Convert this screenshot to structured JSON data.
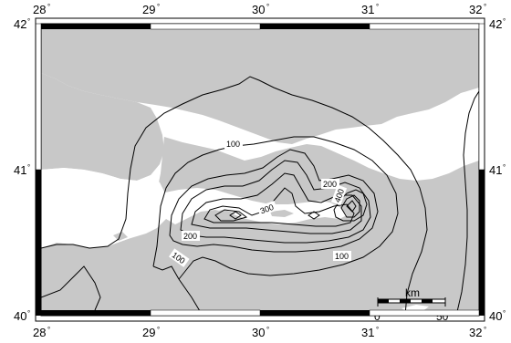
{
  "map": {
    "longitudes": [
      "28",
      "29",
      "30",
      "31",
      "32"
    ],
    "latitudes": [
      "42",
      "41",
      "40"
    ],
    "degree_symbol": "°",
    "land_color": "#c8c8c8",
    "sea_color": "#ffffff",
    "contour_color": "#000000",
    "contour_labels": [
      {
        "text": "100"
      },
      {
        "text": "100"
      },
      {
        "text": "100"
      },
      {
        "text": "200"
      },
      {
        "text": "200"
      },
      {
        "text": "300"
      },
      {
        "text": "400"
      }
    ],
    "scale_bar": {
      "unit": "km",
      "start": "0",
      "end": "50"
    }
  }
}
